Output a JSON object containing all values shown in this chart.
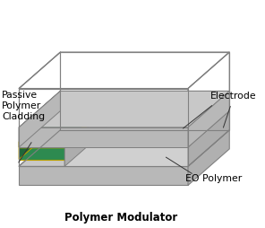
{
  "bg_color": "#ffffff",
  "labels": {
    "electrode": "Electrode",
    "passive": "Passive\nPolymer\nCladding",
    "eo_polymer": "EO Polymer",
    "modulator": "Polymer Modulator"
  },
  "gray_slab": "#c8c8c8",
  "gray_slab_side": "#b8b8b8",
  "gray_elec": "#c0c0c0",
  "gray_elec_side": "#adadad",
  "gray_edge": "#808080",
  "green_fill": "#2d8a50",
  "green_dark": "#1e6638",
  "gold_edge": "#b8a000",
  "text_color": "#000000",
  "line_color": "#555555",
  "annot_color": "#333333"
}
